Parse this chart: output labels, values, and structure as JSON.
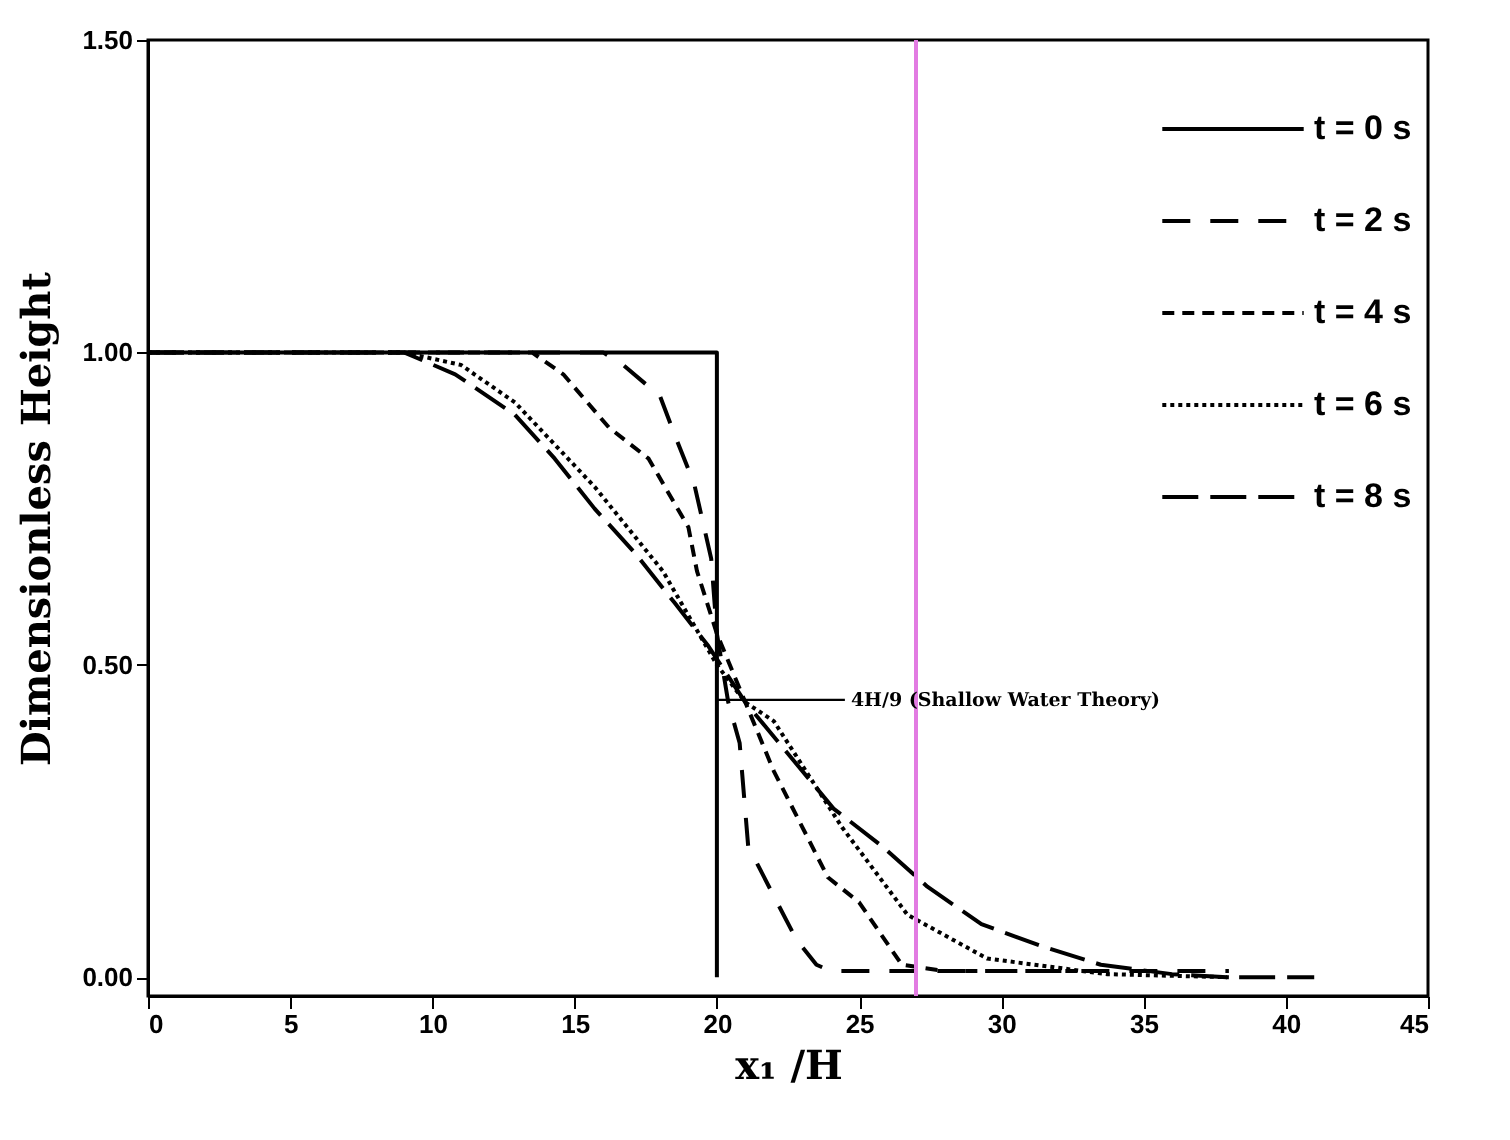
{
  "chart_data": {
    "type": "line",
    "xlabel": "x₁ /H",
    "ylabel": "Dimensionless Height",
    "xlim": [
      0,
      45
    ],
    "xticks": [
      0,
      5,
      10,
      15,
      20,
      25,
      30,
      35,
      40,
      45
    ],
    "ylim": [
      -0.03,
      1.5
    ],
    "yticks": [
      {
        "value": 0,
        "label": "0.00"
      },
      {
        "value": 0.5,
        "label": "0.50"
      },
      {
        "value": 1,
        "label": "1.00"
      },
      {
        "value": 1.5,
        "label": "1.50"
      }
    ],
    "legend": "top right",
    "grid": false,
    "series": [
      {
        "name": "t = 0 s",
        "color": "#000000",
        "line_style": "solid",
        "x": [
          0,
          20,
          20
        ],
        "values": [
          1,
          1,
          0
        ]
      },
      {
        "name": "t = 2 s",
        "color": "#000000",
        "line_style": "dashed",
        "x": [
          0,
          16,
          16.7,
          18,
          18.5,
          19.2,
          19.5,
          19.8,
          20,
          20.4,
          20.8,
          21.1,
          22,
          22.8,
          23.5,
          24,
          30,
          38
        ],
        "values": [
          1,
          1,
          0.98,
          0.93,
          0.87,
          0.79,
          0.73,
          0.67,
          0.55,
          0.44,
          0.375,
          0.21,
          0.13,
          0.06,
          0.02,
          0.01,
          0.01,
          0.01
        ]
      },
      {
        "name": "t = 4 s",
        "color": "#000000",
        "line_style": "dashed",
        "x": [
          0,
          13.5,
          14.6,
          16.2,
          17.6,
          19,
          19.3,
          20,
          21,
          22,
          23.9,
          25,
          26.5,
          28,
          33
        ],
        "values": [
          1,
          1,
          0.965,
          0.88,
          0.83,
          0.72,
          0.65,
          0.55,
          0.44,
          0.33,
          0.16,
          0.12,
          0.02,
          0.01,
          0.01
        ]
      },
      {
        "name": "t = 6 s",
        "color": "#000000",
        "line_style": "dotted",
        "x": [
          0,
          9,
          11,
          12.9,
          15.7,
          18.1,
          20,
          21,
          22,
          24.4,
          26.7,
          29.5,
          33.7,
          38
        ],
        "values": [
          1,
          1,
          0.98,
          0.92,
          0.785,
          0.65,
          0.5,
          0.44,
          0.41,
          0.24,
          0.1,
          0.03,
          0.005,
          0
        ]
      },
      {
        "name": "t = 8 s",
        "color": "#000000",
        "line_style": "dashed",
        "x": [
          0,
          8,
          9,
          10.8,
          12.9,
          14.3,
          15.7,
          17.1,
          18.5,
          19.7,
          21,
          24.1,
          25.8,
          27.4,
          29.3,
          31.4,
          33.5,
          36,
          38,
          41
        ],
        "values": [
          1,
          1,
          1,
          0.965,
          0.9,
          0.83,
          0.75,
          0.68,
          0.6,
          0.53,
          0.44,
          0.27,
          0.21,
          0.145,
          0.085,
          0.05,
          0.02,
          0.005,
          0,
          0
        ]
      }
    ],
    "ref_lines": [
      {
        "axis": "x",
        "value": 27,
        "color": "#e27be2"
      }
    ],
    "annotations": [
      {
        "text": "4H/9 (Shallow Water Theory)",
        "x": 20,
        "y": 0.444
      }
    ]
  }
}
